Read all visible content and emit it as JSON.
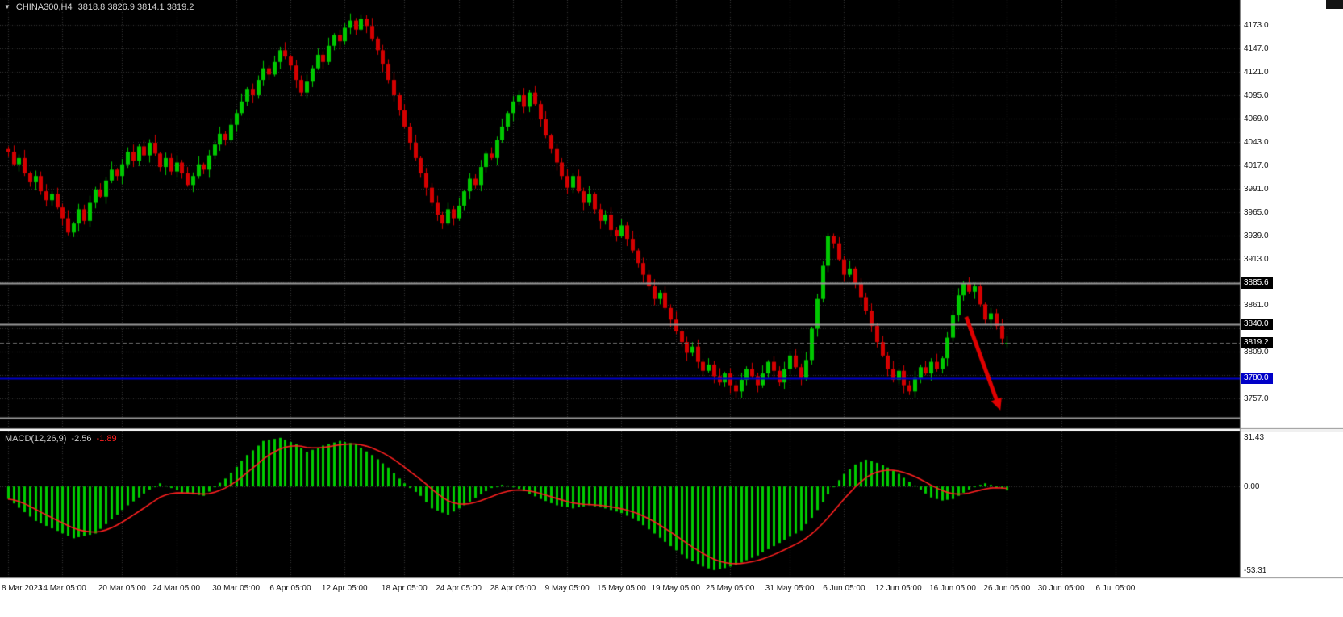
{
  "header": {
    "dropdown_icon": "▼",
    "symbol": "CHINA300,H4",
    "ohlc": "3818.8 3826.9 3814.1 3819.2"
  },
  "colors": {
    "plot_bg": "#000000",
    "panel_bg": "#ffffff",
    "grid": "#373737",
    "up": "#00c800",
    "down": "#d40000",
    "macd_hist": "#00cc00",
    "macd_signal": "#ff2020",
    "axis_border": "#8a8a8a",
    "level_gray": "#9a9a9a",
    "level_blue": "#0000c8",
    "arrow": "#e00000"
  },
  "chart_data": {
    "type": "candlestick+macd",
    "symbol": "CHINA300",
    "timeframe": "H4",
    "candles": [
      [
        4035,
        4038,
        4026,
        4032
      ],
      [
        4032,
        4039,
        4016,
        4018
      ],
      [
        4018,
        4029,
        4010,
        4025
      ],
      [
        4025,
        4034,
        4005,
        4008
      ],
      [
        4008,
        4010,
        3993,
        3998
      ],
      [
        3998,
        4011,
        3989,
        4005
      ],
      [
        4005,
        4010,
        3984,
        3988
      ],
      [
        3988,
        3996,
        3971,
        3978
      ],
      [
        3978,
        3988,
        3972,
        3985
      ],
      [
        3985,
        3992,
        3968,
        3970
      ],
      [
        3970,
        3974,
        3950,
        3958
      ],
      [
        3958,
        3967,
        3939,
        3942
      ],
      [
        3942,
        3954,
        3937,
        3952
      ],
      [
        3952,
        3974,
        3943,
        3968
      ],
      [
        3968,
        3973,
        3951,
        3955
      ],
      [
        3955,
        3983,
        3948,
        3975
      ],
      [
        3975,
        3993,
        3969,
        3990
      ],
      [
        3990,
        3997,
        3980,
        3982
      ],
      [
        3982,
        4004,
        3974,
        4000
      ],
      [
        4000,
        4021,
        3997,
        4012
      ],
      [
        4012,
        4014,
        4000,
        4005
      ],
      [
        4005,
        4024,
        3996,
        4018
      ],
      [
        4018,
        4037,
        4014,
        4032
      ],
      [
        4032,
        4040,
        4015,
        4022
      ],
      [
        4022,
        4041,
        4016,
        4038
      ],
      [
        4038,
        4045,
        4026,
        4028
      ],
      [
        4028,
        4046,
        4020,
        4042
      ],
      [
        4042,
        4051,
        4027,
        4030
      ],
      [
        4030,
        4032,
        4010,
        4015
      ],
      [
        4015,
        4031,
        4006,
        4025
      ],
      [
        4025,
        4030,
        4006,
        4010
      ],
      [
        4010,
        4028,
        4003,
        4020
      ],
      [
        4020,
        4023,
        4002,
        4008
      ],
      [
        4008,
        4015,
        3993,
        3995
      ],
      [
        3995,
        4009,
        3987,
        4005
      ],
      [
        4005,
        4027,
        4002,
        4018
      ],
      [
        4018,
        4020,
        4007,
        4012
      ],
      [
        4012,
        4034,
        4003,
        4028
      ],
      [
        4028,
        4045,
        4024,
        4040
      ],
      [
        4040,
        4060,
        4033,
        4052
      ],
      [
        4052,
        4055,
        4039,
        4045
      ],
      [
        4045,
        4069,
        4043,
        4062
      ],
      [
        4062,
        4079,
        4054,
        4075
      ],
      [
        4075,
        4097,
        4072,
        4088
      ],
      [
        4088,
        4104,
        4083,
        4102
      ],
      [
        4102,
        4108,
        4086,
        4095
      ],
      [
        4095,
        4117,
        4091,
        4112
      ],
      [
        4112,
        4133,
        4105,
        4125
      ],
      [
        4125,
        4128,
        4112,
        4118
      ],
      [
        4118,
        4139,
        4116,
        4132
      ],
      [
        4132,
        4149,
        4124,
        4145
      ],
      [
        4145,
        4154,
        4135,
        4138
      ],
      [
        4138,
        4140,
        4123,
        4128
      ],
      [
        4128,
        4134,
        4103,
        4112
      ],
      [
        4112,
        4117,
        4094,
        4098
      ],
      [
        4098,
        4118,
        4091,
        4110
      ],
      [
        4110,
        4128,
        4104,
        4125
      ],
      [
        4125,
        4147,
        4123,
        4140
      ],
      [
        4140,
        4144,
        4124,
        4132
      ],
      [
        4132,
        4159,
        4129,
        4150
      ],
      [
        4150,
        4164,
        4145,
        4162
      ],
      [
        4162,
        4168,
        4146,
        4155
      ],
      [
        4155,
        4175,
        4151,
        4170
      ],
      [
        4170,
        4186,
        4163,
        4178
      ],
      [
        4178,
        4181,
        4162,
        4168
      ],
      [
        4168,
        4185,
        4166,
        4180
      ],
      [
        4180,
        4184,
        4164,
        4172
      ],
      [
        4172,
        4181,
        4155,
        4158
      ],
      [
        4158,
        4160,
        4140,
        4145
      ],
      [
        4145,
        4151,
        4121,
        4130
      ],
      [
        4130,
        4135,
        4108,
        4112
      ],
      [
        4112,
        4120,
        4088,
        4095
      ],
      [
        4095,
        4098,
        4072,
        4078
      ],
      [
        4078,
        4085,
        4058,
        4060
      ],
      [
        4060,
        4064,
        4034,
        4042
      ],
      [
        4042,
        4051,
        4022,
        4025
      ],
      [
        4025,
        4027,
        4003,
        4008
      ],
      [
        4008,
        4014,
        3983,
        3992
      ],
      [
        3992,
        3997,
        3971,
        3975
      ],
      [
        3975,
        3983,
        3955,
        3962
      ],
      [
        3962,
        3965,
        3946,
        3952
      ],
      [
        3952,
        3975,
        3950,
        3968
      ],
      [
        3968,
        3972,
        3950,
        3958
      ],
      [
        3958,
        3981,
        3955,
        3972
      ],
      [
        3972,
        3990,
        3967,
        3988
      ],
      [
        3988,
        4008,
        3979,
        4002
      ],
      [
        4002,
        4007,
        3991,
        3995
      ],
      [
        3995,
        4023,
        3988,
        4015
      ],
      [
        4015,
        4033,
        4009,
        4030
      ],
      [
        4030,
        4037,
        4023,
        4025
      ],
      [
        4025,
        4049,
        4017,
        4045
      ],
      [
        4045,
        4069,
        4042,
        4060
      ],
      [
        4060,
        4077,
        4055,
        4075
      ],
      [
        4075,
        4094,
        4066,
        4088
      ],
      [
        4088,
        4100,
        4084,
        4095
      ],
      [
        4095,
        4103,
        4075,
        4082
      ],
      [
        4082,
        4101,
        4076,
        4098
      ],
      [
        4098,
        4105,
        4083,
        4085
      ],
      [
        4085,
        4089,
        4060,
        4068
      ],
      [
        4068,
        4077,
        4047,
        4050
      ],
      [
        4050,
        4052,
        4030,
        4035
      ],
      [
        4035,
        4041,
        4011,
        4020
      ],
      [
        4020,
        4025,
        4001,
        4005
      ],
      [
        4005,
        4013,
        3985,
        3992
      ],
      [
        3992,
        4008,
        3986,
        4005
      ],
      [
        4005,
        4012,
        3986,
        3988
      ],
      [
        3988,
        3992,
        3967,
        3975
      ],
      [
        3975,
        3994,
        3972,
        3985
      ],
      [
        3985,
        3987,
        3963,
        3968
      ],
      [
        3968,
        3974,
        3946,
        3955
      ],
      [
        3955,
        3967,
        3951,
        3962
      ],
      [
        3962,
        3970,
        3938,
        3945
      ],
      [
        3945,
        3948,
        3932,
        3938
      ],
      [
        3938,
        3957,
        3936,
        3950
      ],
      [
        3950,
        3954,
        3927,
        3935
      ],
      [
        3935,
        3944,
        3919,
        3922
      ],
      [
        3922,
        3924,
        3903,
        3908
      ],
      [
        3908,
        3914,
        3886,
        3895
      ],
      [
        3895,
        3900,
        3878,
        3882
      ],
      [
        3882,
        3890,
        3861,
        3868
      ],
      [
        3868,
        3878,
        3862,
        3875
      ],
      [
        3875,
        3882,
        3856,
        3858
      ],
      [
        3858,
        3862,
        3837,
        3845
      ],
      [
        3845,
        3854,
        3829,
        3832
      ],
      [
        3832,
        3834,
        3815,
        3820
      ],
      [
        3820,
        3826,
        3799,
        3808
      ],
      [
        3808,
        3820,
        3804,
        3815
      ],
      [
        3815,
        3823,
        3791,
        3798
      ],
      [
        3798,
        3801,
        3782,
        3788
      ],
      [
        3788,
        3802,
        3786,
        3795
      ],
      [
        3795,
        3799,
        3774,
        3782
      ],
      [
        3782,
        3791,
        3772,
        3775
      ],
      [
        3775,
        3787,
        3770,
        3785
      ],
      [
        3785,
        3791,
        3763,
        3772
      ],
      [
        3772,
        3777,
        3757,
        3765
      ],
      [
        3765,
        3786,
        3758,
        3778
      ],
      [
        3778,
        3793,
        3772,
        3790
      ],
      [
        3790,
        3797,
        3780,
        3782
      ],
      [
        3782,
        3786,
        3764,
        3772
      ],
      [
        3772,
        3794,
        3769,
        3785
      ],
      [
        3785,
        3800,
        3780,
        3798
      ],
      [
        3798,
        3804,
        3779,
        3788
      ],
      [
        3788,
        3793,
        3771,
        3775
      ],
      [
        3775,
        3798,
        3768,
        3790
      ],
      [
        3790,
        3808,
        3784,
        3805
      ],
      [
        3805,
        3812,
        3790,
        3792
      ],
      [
        3792,
        3796,
        3772,
        3780
      ],
      [
        3780,
        3809,
        3777,
        3800
      ],
      [
        3800,
        3837,
        3795,
        3835
      ],
      [
        3835,
        3874,
        3826,
        3868
      ],
      [
        3868,
        3910,
        3864,
        3905
      ],
      [
        3905,
        3941,
        3898,
        3938
      ],
      [
        3938,
        3941,
        3924,
        3930
      ],
      [
        3930,
        3937,
        3910,
        3912
      ],
      [
        3912,
        3916,
        3887,
        3895
      ],
      [
        3895,
        3911,
        3892,
        3902
      ],
      [
        3902,
        3904,
        3880,
        3885
      ],
      [
        3885,
        3891,
        3861,
        3870
      ],
      [
        3870,
        3875,
        3851,
        3855
      ],
      [
        3855,
        3863,
        3831,
        3838
      ],
      [
        3838,
        3841,
        3814,
        3820
      ],
      [
        3820,
        3827,
        3803,
        3805
      ],
      [
        3805,
        3809,
        3782,
        3790
      ],
      [
        3790,
        3799,
        3775,
        3778
      ],
      [
        3778,
        3790,
        3773,
        3788
      ],
      [
        3788,
        3794,
        3763,
        3772
      ],
      [
        3772,
        3777,
        3761,
        3765
      ],
      [
        3765,
        3788,
        3758,
        3780
      ],
      [
        3780,
        3795,
        3774,
        3792
      ],
      [
        3792,
        3799,
        3783,
        3785
      ],
      [
        3785,
        3802,
        3777,
        3798
      ],
      [
        3798,
        3807,
        3787,
        3790
      ],
      [
        3790,
        3804,
        3785,
        3802
      ],
      [
        3802,
        3831,
        3793,
        3825
      ],
      [
        3825,
        3855,
        3821,
        3850
      ],
      [
        3850,
        3880,
        3843,
        3872
      ],
      [
        3872,
        3888,
        3866,
        3885
      ],
      [
        3885,
        3892,
        3874,
        3876
      ],
      [
        3876,
        3886,
        3868,
        3882
      ],
      [
        3882,
        3886,
        3859,
        3862
      ],
      [
        3862,
        3864,
        3840,
        3845
      ],
      [
        3845,
        3858,
        3836,
        3852
      ],
      [
        3852,
        3857,
        3834,
        3838
      ],
      [
        3838,
        3846,
        3817,
        3824
      ],
      [
        3818.8,
        3826.9,
        3814.1,
        3819.2
      ]
    ],
    "price_axis": {
      "min": 3724,
      "max": 4201,
      "ticks": [
        4173.0,
        4147.0,
        4121.0,
        4095.0,
        4069.0,
        4043.0,
        4017.0,
        3991.0,
        3965.0,
        3939.0,
        3913.0,
        3887.0,
        3861.0,
        3835.0,
        3809.0,
        3783.0,
        3757.0
      ]
    },
    "levels": [
      {
        "price": 3885.6,
        "label": "3885.6",
        "line": "#9a9a9a",
        "tag": "#000000",
        "style": "solid",
        "w": 2
      },
      {
        "price": 3840.0,
        "label": "3840.0",
        "line": "#9a9a9a",
        "tag": "#000000",
        "style": "solid",
        "w": 2
      },
      {
        "price": 3819.2,
        "label": "3819.2",
        "line": "#707070",
        "tag": "#000000",
        "style": "dash",
        "w": 1
      },
      {
        "price": 3780.0,
        "label": "3780.0",
        "line": "#0000c8",
        "tag": "#0000c8",
        "style": "solid",
        "w": 2
      },
      {
        "price": 3736.0,
        "label": null,
        "line": "#9a9a9a",
        "tag": null,
        "style": "solid",
        "w": 2
      }
    ],
    "time_labels": [
      {
        "i": 0,
        "text": "8 Mar 2023"
      },
      {
        "i": 10,
        "text": "14 Mar 05:00"
      },
      {
        "i": 21,
        "text": "20 Mar 05:00"
      },
      {
        "i": 31,
        "text": "24 Mar 05:00"
      },
      {
        "i": 42,
        "text": "30 Mar 05:00"
      },
      {
        "i": 52,
        "text": "6 Apr 05:00"
      },
      {
        "i": 62,
        "text": "12 Apr 05:00"
      },
      {
        "i": 73,
        "text": "18 Apr 05:00"
      },
      {
        "i": 83,
        "text": "24 Apr 05:00"
      },
      {
        "i": 93,
        "text": "28 Apr 05:00"
      },
      {
        "i": 103,
        "text": "9 May 05:00"
      },
      {
        "i": 113,
        "text": "15 May 05:00"
      },
      {
        "i": 123,
        "text": "19 May 05:00"
      },
      {
        "i": 133,
        "text": "25 May 05:00"
      },
      {
        "i": 144,
        "text": "31 May 05:00"
      },
      {
        "i": 154,
        "text": "6 Jun 05:00"
      },
      {
        "i": 164,
        "text": "12 Jun 05:00"
      },
      {
        "i": 174,
        "text": "16 Jun 05:00"
      },
      {
        "i": 184,
        "text": "26 Jun 05:00"
      },
      {
        "i": 194,
        "text": "30 Jun 05:00"
      },
      {
        "i": 204,
        "text": "6 Jul 05:00"
      }
    ],
    "macd": {
      "label": "MACD(12,26,9)",
      "main_value": "-2.56",
      "signal_value": "-1.89",
      "signal_period": 9,
      "min": -58,
      "max": 35,
      "axis_labels": [
        {
          "v": 31.43,
          "text": "31.43"
        },
        {
          "v": 0,
          "text": "0.00"
        },
        {
          "v": -53.31,
          "text": "-53.31"
        }
      ],
      "values": [
        -8,
        -10.8,
        -13.6,
        -16.4,
        -19.2,
        -22,
        -23.6,
        -25.1,
        -26.7,
        -28.3,
        -29.9,
        -31.4,
        -33,
        -32.3,
        -31.5,
        -30.8,
        -30,
        -27,
        -24,
        -21,
        -18,
        -15,
        -12,
        -9.5,
        -7,
        -4.5,
        -2,
        0,
        2,
        0.5,
        -1,
        -2.5,
        -4,
        -4.5,
        -5,
        -5.5,
        -6,
        -3.3,
        -0.5,
        2.3,
        5,
        8.8,
        12.5,
        16.3,
        20,
        23,
        26,
        29,
        29.7,
        30.3,
        31,
        29.7,
        28.3,
        27,
        24.5,
        22,
        23.3,
        24.7,
        26,
        27,
        28,
        29,
        28.3,
        27.7,
        27,
        24.7,
        22.3,
        20,
        17.3,
        14.7,
        12,
        8.5,
        5,
        2,
        -1,
        -3.5,
        -6,
        -10,
        -14,
        -15.3,
        -16.7,
        -18,
        -16,
        -14,
        -12,
        -9.7,
        -7.3,
        -5,
        -3,
        -1,
        0,
        1,
        0.5,
        0,
        -1.5,
        -3,
        -4.7,
        -6.3,
        -8,
        -9.3,
        -10.7,
        -12,
        -12.7,
        -13.3,
        -14,
        -13.3,
        -12.7,
        -12,
        -12.7,
        -13.3,
        -14,
        -15,
        -16,
        -17,
        -18.7,
        -20.3,
        -22,
        -24.7,
        -27.3,
        -30,
        -32.7,
        -35.3,
        -38,
        -40.7,
        -43.3,
        -46,
        -47.7,
        -49.3,
        -51,
        -52.2,
        -53.3,
        -52.7,
        -52,
        -51,
        -50,
        -48.5,
        -47,
        -45.5,
        -44,
        -42,
        -40,
        -38,
        -36,
        -34,
        -32,
        -30,
        -28,
        -24,
        -20,
        -15,
        -10,
        -5,
        0,
        4,
        8,
        11,
        14,
        15.5,
        17,
        16,
        15,
        13.5,
        12,
        10,
        8,
        5.5,
        3,
        0.5,
        -2,
        -4.5,
        -7,
        -8,
        -9,
        -8.5,
        -8,
        -6,
        -4,
        -2,
        0,
        1,
        2,
        1,
        0,
        -1.3,
        -2.56
      ]
    },
    "annotations": [
      {
        "type": "arrow",
        "from_index": 176.5,
        "from_price": 3848,
        "to_index": 182.8,
        "to_price": 3744,
        "color": "#e00000",
        "width": 5
      }
    ]
  }
}
